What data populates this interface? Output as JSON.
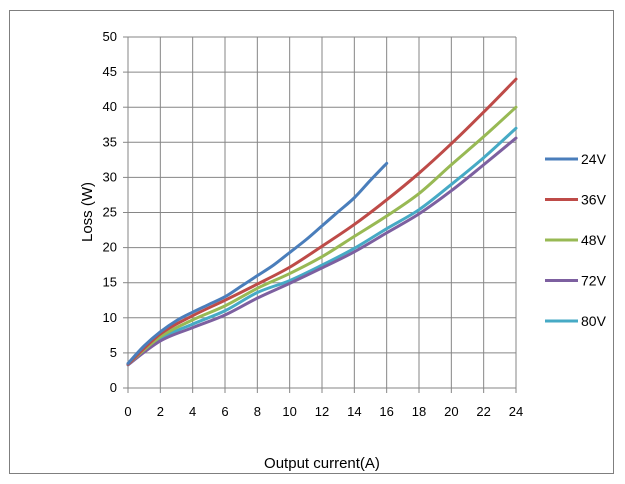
{
  "chart_data": {
    "type": "line",
    "title": "",
    "xlabel": "Output current(A)",
    "ylabel": "Loss (W)",
    "xlim": [
      0,
      24
    ],
    "ylim": [
      0,
      50
    ],
    "xticks": [
      0,
      2,
      4,
      6,
      8,
      10,
      12,
      14,
      16,
      18,
      20,
      22,
      24
    ],
    "yticks": [
      0,
      5,
      10,
      15,
      20,
      25,
      30,
      35,
      40,
      45,
      50
    ],
    "grid": true,
    "legend_position": "right",
    "series": [
      {
        "name": "24V",
        "color": "#4a7ebb",
        "x": [
          0,
          1,
          2,
          3,
          4,
          5,
          6,
          7,
          8,
          9,
          10,
          11,
          12,
          13,
          14,
          15,
          16
        ],
        "y": [
          3.5,
          6,
          8,
          9.6,
          10.8,
          11.9,
          13,
          14.5,
          16,
          17.5,
          19.3,
          21.1,
          23.1,
          25.1,
          27.1,
          29.6,
          32.0
        ]
      },
      {
        "name": "36V",
        "color": "#be4b48",
        "x": [
          0,
          2,
          4,
          6,
          8,
          10,
          12,
          14,
          16,
          18,
          20,
          22,
          24
        ],
        "y": [
          3.4,
          7.7,
          10.3,
          12.5,
          14.8,
          17.2,
          20.2,
          23.3,
          26.8,
          30.6,
          34.8,
          39.3,
          44.0
        ]
      },
      {
        "name": "48V",
        "color": "#98b954",
        "x": [
          0,
          2,
          4,
          6,
          8,
          10,
          12,
          14,
          16,
          18,
          20,
          22,
          24
        ],
        "y": [
          3.4,
          7.3,
          9.7,
          11.7,
          14.2,
          16.3,
          18.7,
          21.6,
          24.5,
          27.7,
          31.8,
          35.8,
          40.0
        ]
      },
      {
        "name": "72V",
        "color": "#7d60a0",
        "x": [
          0,
          2,
          4,
          6,
          8,
          10,
          12,
          14,
          16,
          18,
          20,
          22,
          24
        ],
        "y": [
          3.3,
          6.7,
          8.6,
          10.4,
          12.8,
          14.9,
          17.1,
          19.4,
          22.1,
          24.8,
          28.1,
          31.8,
          35.6
        ]
      },
      {
        "name": "80V",
        "color": "#46aac5",
        "x": [
          0,
          2,
          4,
          6,
          8,
          10,
          12,
          14,
          16,
          18,
          20,
          22,
          24
        ],
        "y": [
          3.3,
          7.0,
          9.1,
          11.0,
          13.6,
          15.3,
          17.5,
          19.9,
          22.7,
          25.4,
          29.0,
          32.8,
          37.0
        ]
      }
    ]
  }
}
